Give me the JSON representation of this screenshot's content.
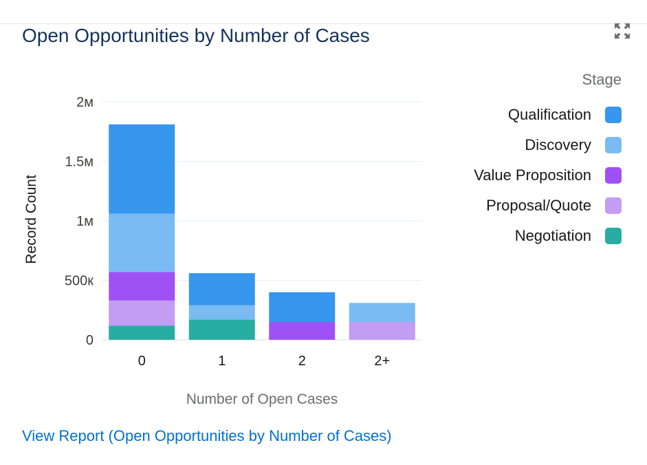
{
  "widget": {
    "title": "Open Opportunities by Number of Cases",
    "expand_icon": "expand-icon",
    "report_link": "View Report (Open Opportunities by Number of Cases)"
  },
  "colors": {
    "title": "#16325c",
    "link": "#0070d2",
    "grid": "#e6ecf2"
  },
  "chart_data": {
    "type": "bar",
    "stacked": true,
    "xlabel": "Number of Open Cases",
    "ylabel": "Record Count",
    "categories": [
      "0",
      "1",
      "2",
      "2+"
    ],
    "ylim": [
      0,
      2000000
    ],
    "yticks": [
      0,
      500000,
      1000000,
      1500000,
      2000000
    ],
    "ytick_labels": [
      "0",
      "500к",
      "1м",
      "1.5м",
      "2м"
    ],
    "grid": true,
    "legend": {
      "title": "Stage",
      "position": "right"
    },
    "series": [
      {
        "name": "Qualification",
        "color": "#3796ed",
        "values": [
          750000,
          270000,
          250000,
          0
        ]
      },
      {
        "name": "Discovery",
        "color": "#7bbbf3",
        "values": [
          490000,
          120000,
          0,
          160000
        ]
      },
      {
        "name": "Value Proposition",
        "color": "#9e52f5",
        "values": [
          240000,
          0,
          150000,
          0
        ]
      },
      {
        "name": "Proposal/Quote",
        "color": "#c39cf4",
        "values": [
          210000,
          0,
          0,
          150000
        ]
      },
      {
        "name": "Negotiation",
        "color": "#27ada2",
        "values": [
          120000,
          170000,
          0,
          0
        ]
      }
    ]
  }
}
